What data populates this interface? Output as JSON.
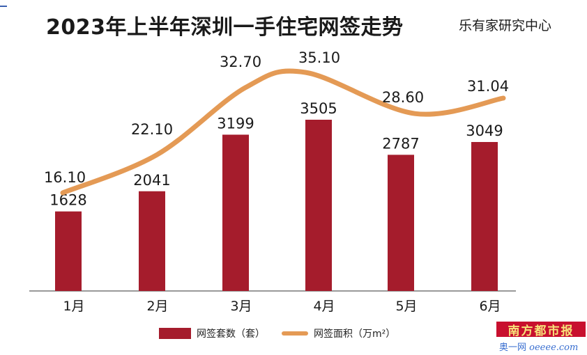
{
  "title": "2023年上半年深圳一手住宅网签走势",
  "source": "乐有家研究中心",
  "legend": {
    "bar_label": "网签套数（套）",
    "line_label": "网签面积（万m²）"
  },
  "logo": "南方都市报",
  "watermark": {
    "prefix": "奥一网",
    "suffix": "oeeee.com"
  },
  "colors": {
    "bar": "#a51c2c",
    "line": "#e49a55"
  },
  "chart_data": {
    "type": "bar",
    "categories": [
      "1月",
      "2月",
      "3月",
      "4月",
      "5月",
      "6月"
    ],
    "series": [
      {
        "name": "网签套数（套）",
        "type": "bar",
        "values": [
          1628,
          2041,
          3199,
          3505,
          2787,
          3049
        ],
        "labels": [
          "1628",
          "2041",
          "3199",
          "3505",
          "2787",
          "3049"
        ]
      },
      {
        "name": "网签面积（万m²）",
        "type": "line",
        "values": [
          16.1,
          22.1,
          32.7,
          35.1,
          28.6,
          31.04
        ],
        "labels": [
          "16.10",
          "22.10",
          "32.70",
          "35.10",
          "28.60",
          "31.04"
        ]
      }
    ],
    "legend_position": "bottom",
    "grid": false
  }
}
